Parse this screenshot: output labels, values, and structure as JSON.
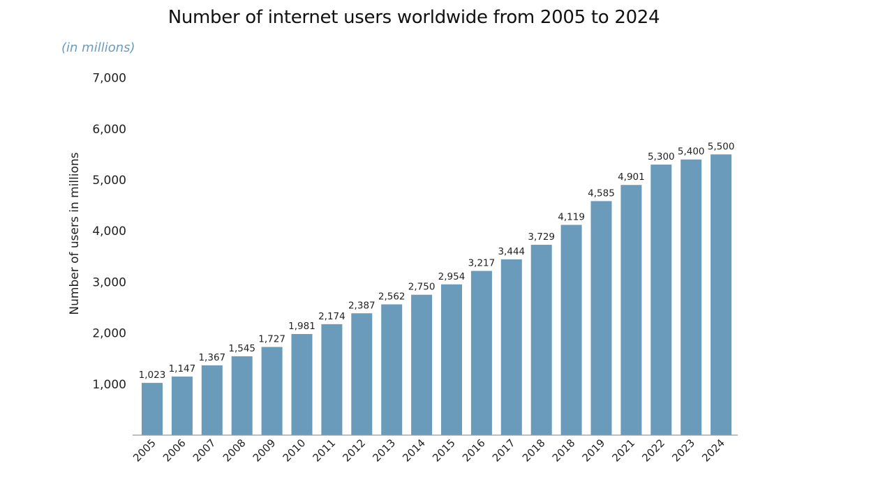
{
  "chart_data": {
    "type": "bar",
    "title": "Number of internet users worldwide from 2005 to 2024",
    "subtitle": "(in millions)",
    "xlabel": "",
    "ylabel": "Number of users in millions",
    "categories": [
      "2005",
      "2006",
      "2007",
      "2008",
      "2009",
      "2010",
      "2011",
      "2012",
      "2013",
      "2014",
      "2015",
      "2016",
      "2017",
      "2018",
      "2018",
      "2019",
      "2021",
      "2022",
      "2023",
      "2024"
    ],
    "values": [
      1023,
      1147,
      1367,
      1545,
      1727,
      1981,
      2174,
      2387,
      2562,
      2750,
      2954,
      3217,
      3444,
      3729,
      4119,
      4585,
      4901,
      5300,
      5400,
      5500
    ],
    "data_labels": [
      "1,023",
      "1,147",
      "1,367",
      "1,545",
      "1,727",
      "1,981",
      "2,174",
      "2,387",
      "2,562",
      "2,750",
      "2,954",
      "3,217",
      "3,444",
      "3,729",
      "4,119",
      "4,585",
      "4,901",
      "5,300",
      "5,400",
      "5,500"
    ],
    "y_ticks": [
      1000,
      2000,
      3000,
      4000,
      5000,
      6000,
      7000
    ],
    "y_tick_labels": [
      "1,000",
      "2,000",
      "3,000",
      "4,000",
      "5,000",
      "6,000",
      "7,000"
    ],
    "ylim": [
      0,
      7000
    ],
    "grid": false,
    "legend": "none",
    "colors": {
      "bar": "#6a9bbb",
      "subtitle": "#6a9bbb",
      "axis": "#999999"
    }
  }
}
